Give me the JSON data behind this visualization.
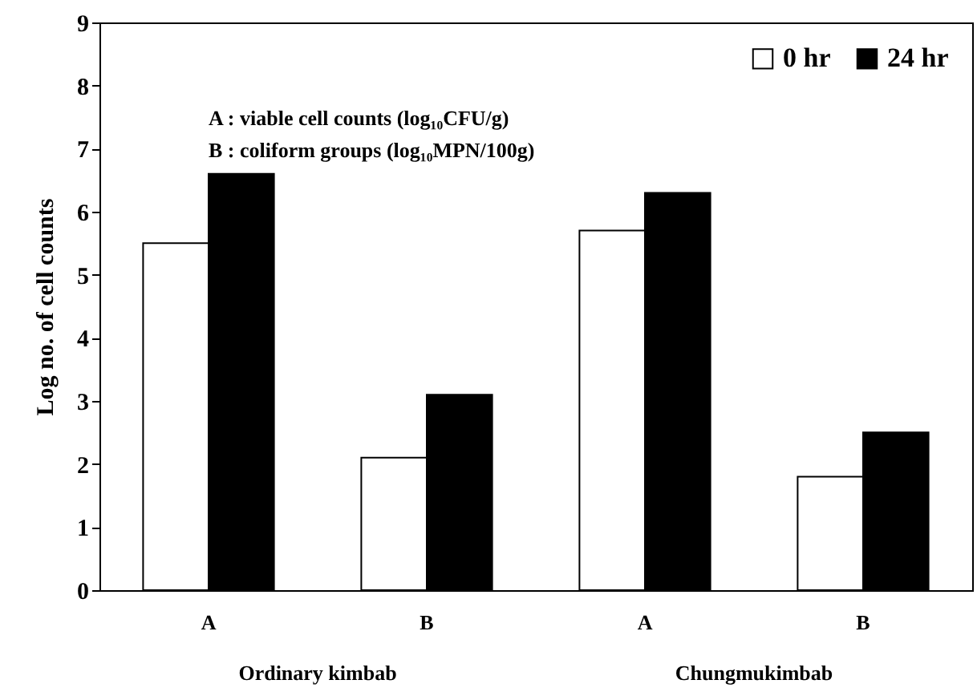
{
  "chart_data": {
    "type": "bar",
    "ylabel": "Log no. of cell counts",
    "categories": [
      "A",
      "B",
      "A",
      "B"
    ],
    "series": [
      {
        "name": "0 hr",
        "color": "#ffffff",
        "values": [
          5.5,
          2.1,
          5.7,
          1.8
        ]
      },
      {
        "name": "24 hr",
        "color": "#000000",
        "values": [
          6.6,
          3.1,
          6.3,
          2.5
        ]
      }
    ],
    "ylim": [
      0,
      9
    ],
    "yticks": [
      0,
      1,
      2,
      3,
      4,
      5,
      6,
      7,
      8,
      9
    ],
    "grid": false,
    "legend": "top right",
    "annotations": [
      "A : viable cell counts (log₁₀CFU/g)",
      "B : coliform groups (log₁₀MPN/100g)",
      "Ordinary kimbab",
      "Chungmukimbab"
    ]
  }
}
